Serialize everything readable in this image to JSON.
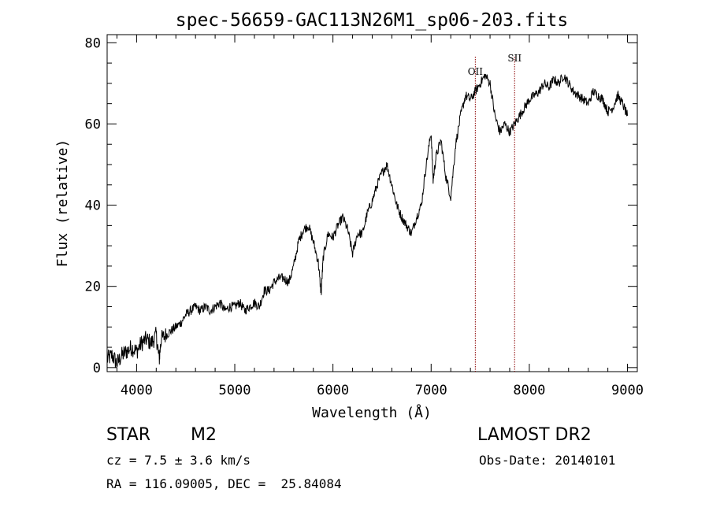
{
  "chart_data": {
    "type": "line",
    "title": "spec-56659-GAC113N26M1_sp06-203.fits",
    "xlabel": "Wavelength (Å)",
    "ylabel": "Flux (relative)",
    "xlim": [
      3700,
      9100
    ],
    "ylim": [
      -1,
      82
    ],
    "xticks": [
      4000,
      5000,
      6000,
      7000,
      8000,
      9000
    ],
    "yticks": [
      0,
      20,
      40,
      60,
      80
    ],
    "grid": false,
    "line_color": "#000000",
    "marker_color": "#8b0000",
    "lines": [
      {
        "label": "OII",
        "x": 7450
      },
      {
        "label": "SII",
        "x": 7850
      }
    ],
    "series": [
      {
        "x": [
          3700,
          3750,
          3800,
          3850,
          3900,
          3950,
          4000,
          4050,
          4100,
          4150,
          4200,
          4230,
          4250,
          4300,
          4350,
          4400,
          4450,
          4500,
          4550,
          4600,
          4650,
          4700,
          4750,
          4800,
          4850,
          4900,
          4950,
          5000,
          5050,
          5100,
          5150,
          5200,
          5250,
          5300,
          5350,
          5400,
          5450,
          5500,
          5550,
          5600,
          5650,
          5700,
          5750,
          5800,
          5850,
          5880,
          5900,
          5950,
          6000,
          6050,
          6100,
          6150,
          6200,
          6250,
          6300,
          6350,
          6400,
          6450,
          6500,
          6550,
          6600,
          6650,
          6700,
          6750,
          6800,
          6850,
          6900,
          6950,
          7000,
          7020,
          7050,
          7100,
          7150,
          7200,
          7250,
          7300,
          7350,
          7400,
          7450,
          7500,
          7550,
          7600,
          7650,
          7700,
          7750,
          7800,
          7850,
          7900,
          7950,
          8000,
          8050,
          8100,
          8150,
          8200,
          8250,
          8300,
          8350,
          8400,
          8450,
          8500,
          8550,
          8600,
          8650,
          8700,
          8750,
          8800,
          8850,
          8900,
          8950,
          9000
        ],
        "y": [
          2,
          3,
          1,
          3,
          4,
          5,
          4,
          6,
          7,
          6,
          8,
          2,
          7,
          8,
          9,
          10,
          11,
          13,
          14,
          15,
          14,
          15,
          14,
          15,
          16,
          14,
          15,
          15,
          16,
          14,
          15,
          16,
          15,
          19,
          19,
          21,
          22,
          22,
          21,
          25,
          31,
          34,
          35,
          31,
          26,
          18,
          27,
          33,
          32,
          35,
          37,
          34,
          28,
          33,
          33,
          38,
          41,
          45,
          48,
          50,
          45,
          40,
          37,
          35,
          33,
          37,
          40,
          50,
          58,
          46,
          52,
          56,
          47,
          42,
          55,
          62,
          67,
          66,
          68,
          70,
          72,
          70,
          62,
          58,
          60,
          58,
          60,
          62,
          64,
          66,
          67,
          68,
          70,
          69,
          71,
          70,
          72,
          70,
          68,
          67,
          66,
          65,
          68,
          67,
          66,
          63,
          64,
          67,
          65,
          62
        ]
      }
    ]
  },
  "info": {
    "object_class": "STAR",
    "subclass": "M2",
    "survey": "LAMOST DR2",
    "cz": "cz = 7.5 ± 3.6 km/s",
    "obs_date": "Obs-Date: 20140101",
    "coords": "RA = 116.09005, DEC =  25.84084"
  }
}
